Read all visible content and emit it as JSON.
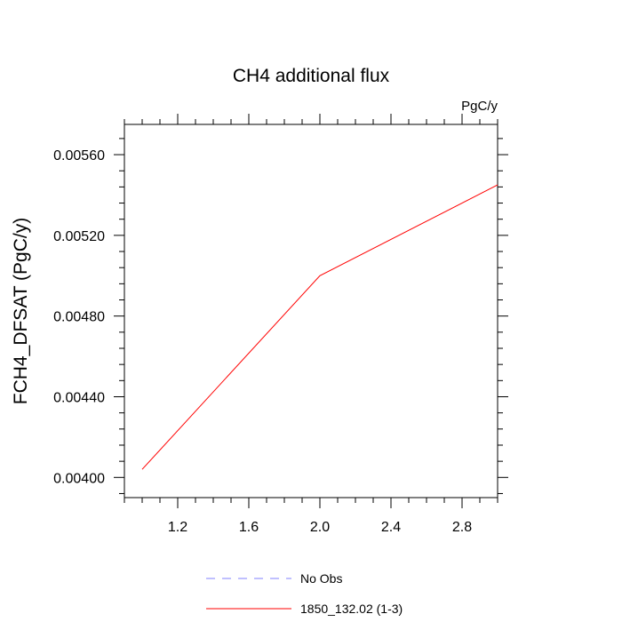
{
  "chart_data": {
    "type": "line",
    "title": "CH4 additional flux",
    "units_label": "PgC/y",
    "xlabel": "",
    "ylabel": "FCH4_DFSAT  (PgC/y)",
    "xlim": [
      0.9,
      3.0
    ],
    "ylim": [
      0.0039,
      0.00575
    ],
    "x_ticks": [
      1.2,
      1.6,
      2.0,
      2.4,
      2.8
    ],
    "x_tick_labels": [
      "1.2",
      "1.6",
      "2.0",
      "2.4",
      "2.8"
    ],
    "y_ticks": [
      0.004,
      0.0044,
      0.0048,
      0.0052,
      0.0056
    ],
    "y_tick_labels": [
      "0.00400",
      "0.00440",
      "0.00480",
      "0.00520",
      "0.00560"
    ],
    "grid": false,
    "legend_position": "bottom",
    "series": [
      {
        "name": "1850_132.02 (1-3)",
        "color": "#ff0000",
        "dash": "solid",
        "x": [
          1,
          2,
          3
        ],
        "y": [
          0.00404,
          0.005,
          0.00545
        ]
      }
    ],
    "legend": [
      {
        "label": "No Obs",
        "color": "#8080ff",
        "dash": "dashed"
      },
      {
        "label": "1850_132.02 (1-3)",
        "color": "#ff0000",
        "dash": "solid"
      }
    ]
  }
}
